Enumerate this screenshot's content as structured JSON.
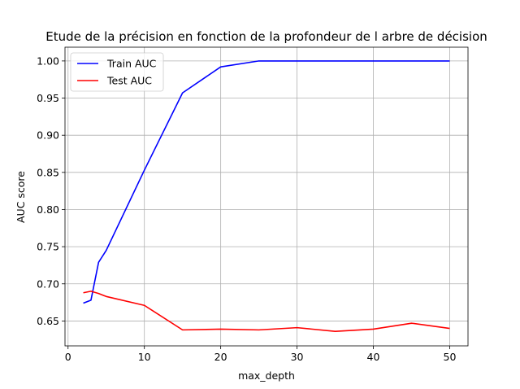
{
  "chart_data": {
    "type": "line",
    "title": "Etude de la précision en fonction de la profondeur de l arbre de décision",
    "xlabel": "max_depth",
    "ylabel": "AUC score",
    "xlim": [
      -0.4,
      52.4
    ],
    "ylim": [
      0.6165,
      1.0185
    ],
    "xticks": [
      0,
      10,
      20,
      30,
      40,
      50
    ],
    "yticks": [
      0.65,
      0.7,
      0.75,
      0.8,
      0.85,
      0.9,
      0.95,
      1.0
    ],
    "grid": true,
    "legend_position": "top-left",
    "series": [
      {
        "name": "Train AUC",
        "color": "#0000ff",
        "x": [
          2,
          3,
          4,
          5,
          10,
          15,
          20,
          25,
          30,
          35,
          40,
          45,
          50
        ],
        "y": [
          0.674,
          0.678,
          0.729,
          0.745,
          0.853,
          0.957,
          0.992,
          1.0,
          1.0,
          1.0,
          1.0,
          1.0,
          1.0
        ]
      },
      {
        "name": "Test AUC",
        "color": "#ff0000",
        "x": [
          2,
          3,
          4,
          5,
          10,
          15,
          20,
          25,
          30,
          35,
          40,
          45,
          50
        ],
        "y": [
          0.688,
          0.69,
          0.687,
          0.683,
          0.671,
          0.638,
          0.639,
          0.638,
          0.641,
          0.636,
          0.639,
          0.647,
          0.64
        ]
      }
    ]
  }
}
